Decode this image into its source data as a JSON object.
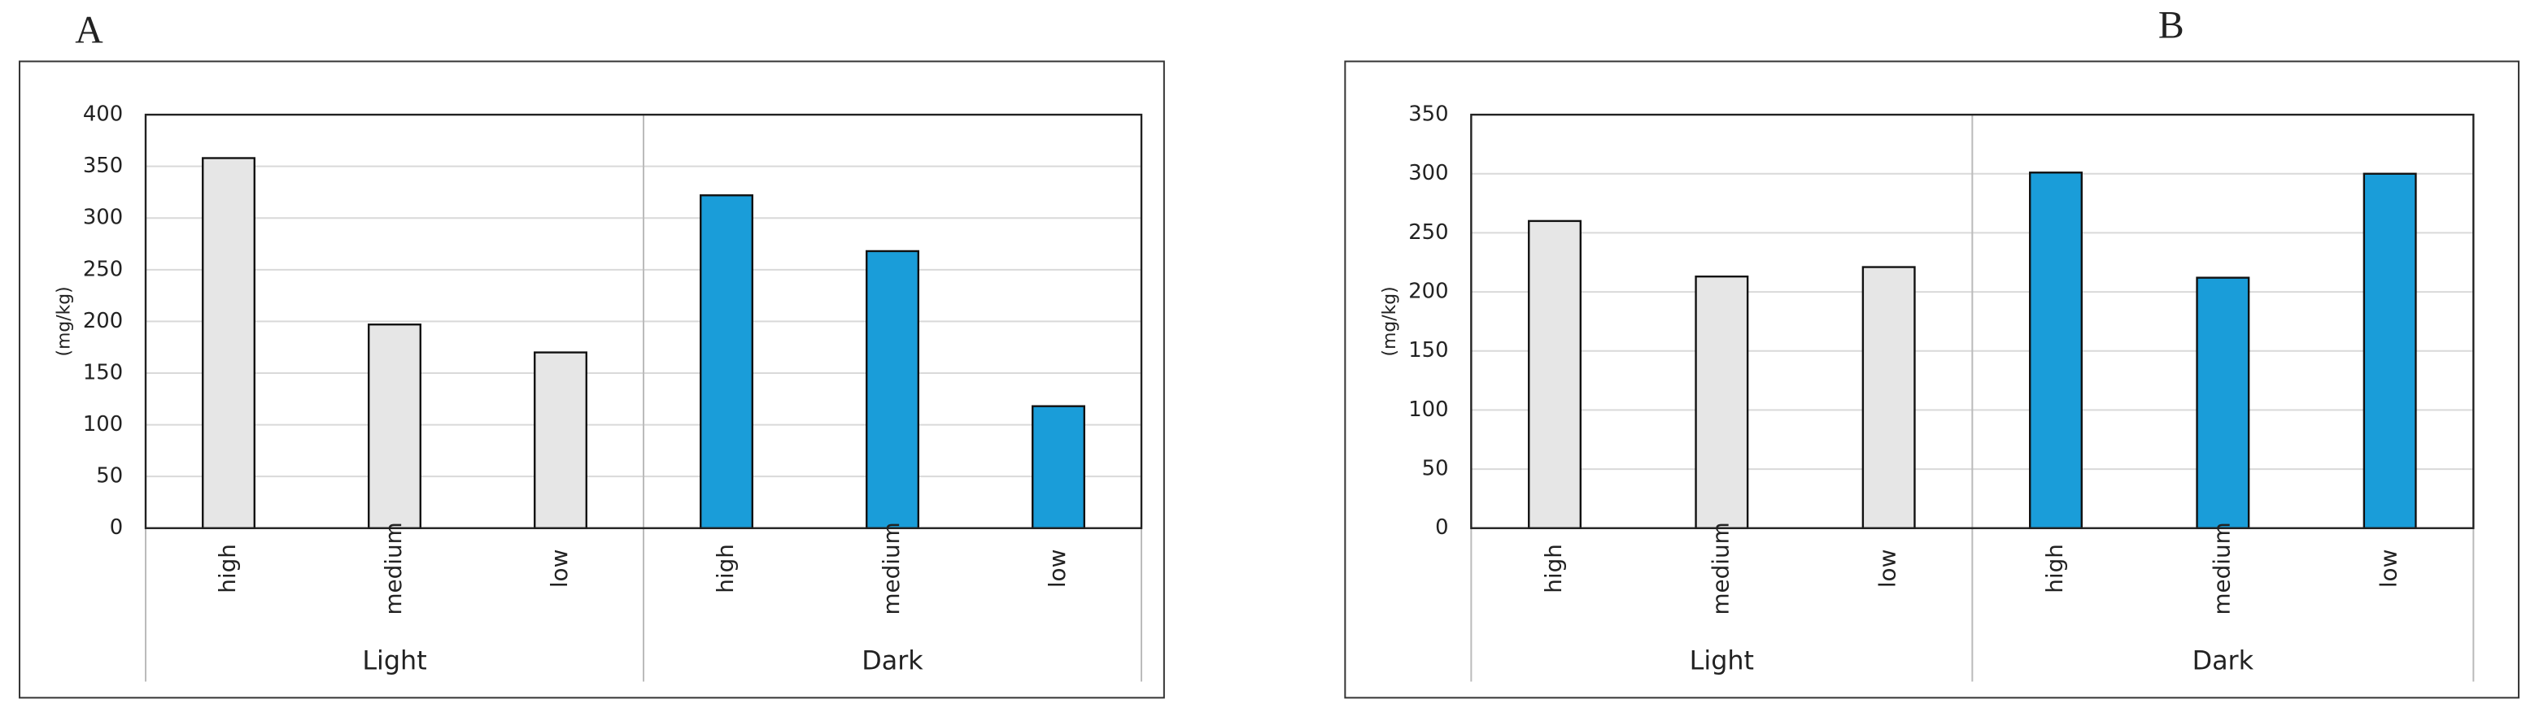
{
  "chart_data": [
    {
      "type": "bar",
      "panel": "A",
      "ylabel": "(mg/kg)",
      "groups": [
        {
          "name": "Light",
          "color": "#e6e6e6",
          "categories": [
            "high",
            "medium",
            "low"
          ],
          "values": [
            358,
            197,
            170
          ]
        },
        {
          "name": "Dark",
          "color": "#1a9dd9",
          "categories": [
            "high",
            "medium",
            "low"
          ],
          "values": [
            322,
            268,
            118
          ]
        }
      ],
      "ylim": [
        0,
        400
      ],
      "yticks": [
        0,
        50,
        100,
        150,
        200,
        250,
        300,
        350,
        400
      ],
      "grid": true
    },
    {
      "type": "bar",
      "panel": "B",
      "ylabel": "(mg/kg)",
      "groups": [
        {
          "name": "Light",
          "color": "#e6e6e6",
          "categories": [
            "high",
            "medium",
            "low"
          ],
          "values": [
            260,
            213,
            221
          ]
        },
        {
          "name": "Dark",
          "color": "#1a9dd9",
          "categories": [
            "high",
            "medium",
            "low"
          ],
          "values": [
            301,
            212,
            300
          ]
        }
      ],
      "ylim": [
        0,
        350
      ],
      "yticks": [
        0,
        50,
        100,
        150,
        200,
        250,
        300,
        350
      ],
      "grid": true
    }
  ]
}
